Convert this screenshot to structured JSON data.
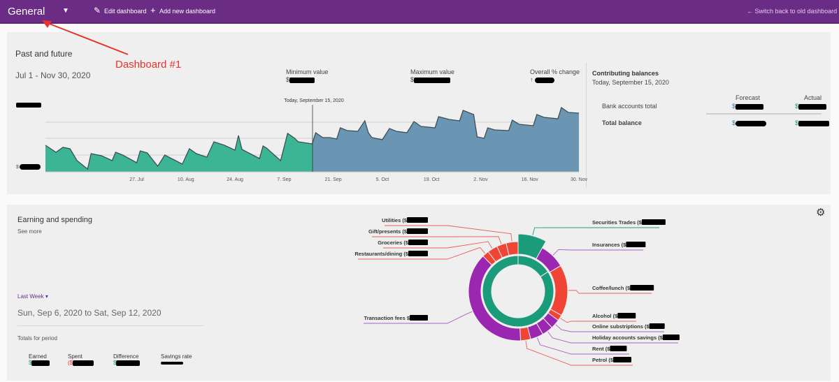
{
  "header": {
    "title": "General",
    "edit_label": "Edit dashboard",
    "add_label": "Add new dashboard",
    "switch_label": "Switch back to old dashboard",
    "bg_color": "#6a2c85"
  },
  "annotation": {
    "text": "Dashboard #1",
    "color": "#e8322a"
  },
  "past_future": {
    "title": "Past and future",
    "date_range": "Jul 1 - Nov 30, 2020",
    "min_label": "Minimum value",
    "min_prefix": "$",
    "max_label": "Maximum value",
    "max_prefix": "$",
    "change_label": "Overall % change",
    "change_arrow": "↑",
    "today_label": "Today, September 15, 2020",
    "y_prefix": "$"
  },
  "contributing": {
    "title": "Contributing balances",
    "date": "Today, September 15, 2020",
    "col_forecast": "Forecast",
    "col_actual": "Actual",
    "rows": [
      {
        "label": "Bank accounts total",
        "forecast_prefix": "$",
        "actual_prefix": "$"
      },
      {
        "label": "Total balance",
        "forecast_prefix": "$",
        "actual_prefix": "$"
      }
    ]
  },
  "earning": {
    "title": "Earning and spending",
    "see_more": "See more",
    "period_select": "Last Week",
    "period_range": "Sun, Sep 6, 2020 to Sat, Sep 12, 2020",
    "totals_label": "Totals for period",
    "totals": [
      {
        "label": "Earned",
        "prefix": "$"
      },
      {
        "label": "Spent",
        "prefix": "($"
      },
      {
        "label": "Difference",
        "prefix": "$"
      },
      {
        "label": "Savings rate",
        "prefix": ""
      }
    ]
  },
  "chart_data": [
    {
      "type": "area",
      "x_ticks": [
        "27. Jul",
        "10. Aug",
        "24. Aug",
        "7. Sep",
        "21. Sep",
        "5. Oct",
        "19. Oct",
        "2. Nov",
        "16. Nov",
        "30. Nov"
      ],
      "grid": true,
      "colors": {
        "past": "#3bb593",
        "future": "#6a96b4"
      },
      "series": [
        {
          "values": [
            [
              "2020-07-01",
              38
            ],
            [
              "2020-07-04",
              28
            ],
            [
              "2020-07-06",
              35
            ],
            [
              "2020-07-08",
              33
            ],
            [
              "2020-07-10",
              16
            ],
            [
              "2020-07-13",
              4
            ],
            [
              "2020-07-14",
              26
            ],
            [
              "2020-07-17",
              23
            ],
            [
              "2020-07-20",
              16
            ],
            [
              "2020-07-21",
              28
            ],
            [
              "2020-07-23",
              24
            ],
            [
              "2020-07-27",
              13
            ],
            [
              "2020-07-28",
              30
            ],
            [
              "2020-07-30",
              27
            ],
            [
              "2020-08-02",
              8
            ],
            [
              "2020-08-04",
              24
            ],
            [
              "2020-08-09",
              11
            ],
            [
              "2020-08-11",
              33
            ],
            [
              "2020-08-13",
              26
            ],
            [
              "2020-08-16",
              21
            ],
            [
              "2020-08-18",
              43
            ],
            [
              "2020-08-21",
              38
            ],
            [
              "2020-08-24",
              31
            ],
            [
              "2020-08-25",
              52
            ],
            [
              "2020-08-26",
              32
            ],
            [
              "2020-08-31",
              19
            ],
            [
              "2020-09-01",
              37
            ],
            [
              "2020-09-02",
              34
            ],
            [
              "2020-09-06",
              16
            ],
            [
              "2020-09-08",
              55
            ],
            [
              "2020-09-10",
              48
            ],
            [
              "2020-09-11",
              43
            ],
            [
              "2020-09-15",
              40
            ]
          ]
        },
        {
          "values": [
            [
              "2020-09-15",
              40
            ],
            [
              "2020-09-16",
              56
            ],
            [
              "2020-09-18",
              49
            ],
            [
              "2020-09-20",
              49
            ],
            [
              "2020-09-22",
              47
            ],
            [
              "2020-09-23",
              63
            ],
            [
              "2020-09-25",
              59
            ],
            [
              "2020-09-28",
              58
            ],
            [
              "2020-09-30",
              73
            ],
            [
              "2020-10-01",
              56
            ],
            [
              "2020-10-02",
              49
            ],
            [
              "2020-10-05",
              46
            ],
            [
              "2020-10-07",
              62
            ],
            [
              "2020-10-09",
              58
            ],
            [
              "2020-10-12",
              56
            ],
            [
              "2020-10-14",
              72
            ],
            [
              "2020-10-16",
              65
            ],
            [
              "2020-10-20",
              63
            ],
            [
              "2020-10-21",
              79
            ],
            [
              "2020-10-24",
              75
            ],
            [
              "2020-10-27",
              73
            ],
            [
              "2020-10-28",
              88
            ],
            [
              "2020-10-31",
              82
            ],
            [
              "2020-11-01",
              50
            ],
            [
              "2020-11-03",
              48
            ],
            [
              "2020-11-04",
              63
            ],
            [
              "2020-11-06",
              60
            ],
            [
              "2020-11-10",
              59
            ],
            [
              "2020-11-11",
              74
            ],
            [
              "2020-11-13",
              68
            ],
            [
              "2020-11-17",
              66
            ],
            [
              "2020-11-18",
              82
            ],
            [
              "2020-11-20",
              78
            ],
            [
              "2020-11-24",
              76
            ],
            [
              "2020-11-25",
              92
            ],
            [
              "2020-11-27",
              85
            ],
            [
              "2020-11-30",
              84
            ]
          ]
        }
      ]
    },
    {
      "type": "pie",
      "unit": "percent share (approx.)",
      "inner_color": "#1a9b7a",
      "slices": [
        {
          "label": "Securities Trades ($",
          "value": 8.1,
          "color": "#1a9b7a"
        },
        {
          "label": "Insurances ($",
          "value": 8.3,
          "color": "#9b27b0"
        },
        {
          "label": "Coffee/lunch ($",
          "value": 16.7,
          "color": "#f04434"
        },
        {
          "label": "Alcohol ($",
          "value": 1.9,
          "color": "#f04434"
        },
        {
          "label": "Online substriptions ($",
          "value": 3.1,
          "color": "#9b27b0"
        },
        {
          "label": "Holiday accounts savings ($",
          "value": 3.6,
          "color": "#9b27b0"
        },
        {
          "label": "Rent ($",
          "value": 4.2,
          "color": "#9b27b0"
        },
        {
          "label": "Petrol ($",
          "value": 3.3,
          "color": "#f04434"
        },
        {
          "label": "Transaction fees $",
          "value": 38.3,
          "color": "#9b27b0"
        },
        {
          "label": "Restaurants/dining ($",
          "value": 2.2,
          "color": "#f04434"
        },
        {
          "label": "Groceries ($",
          "value": 3.3,
          "color": "#f04434"
        },
        {
          "label": "Gift/presents ($",
          "value": 3.1,
          "color": "#f04434"
        },
        {
          "label": "Utilities ($",
          "value": 3.9,
          "color": "#f04434"
        }
      ]
    }
  ]
}
